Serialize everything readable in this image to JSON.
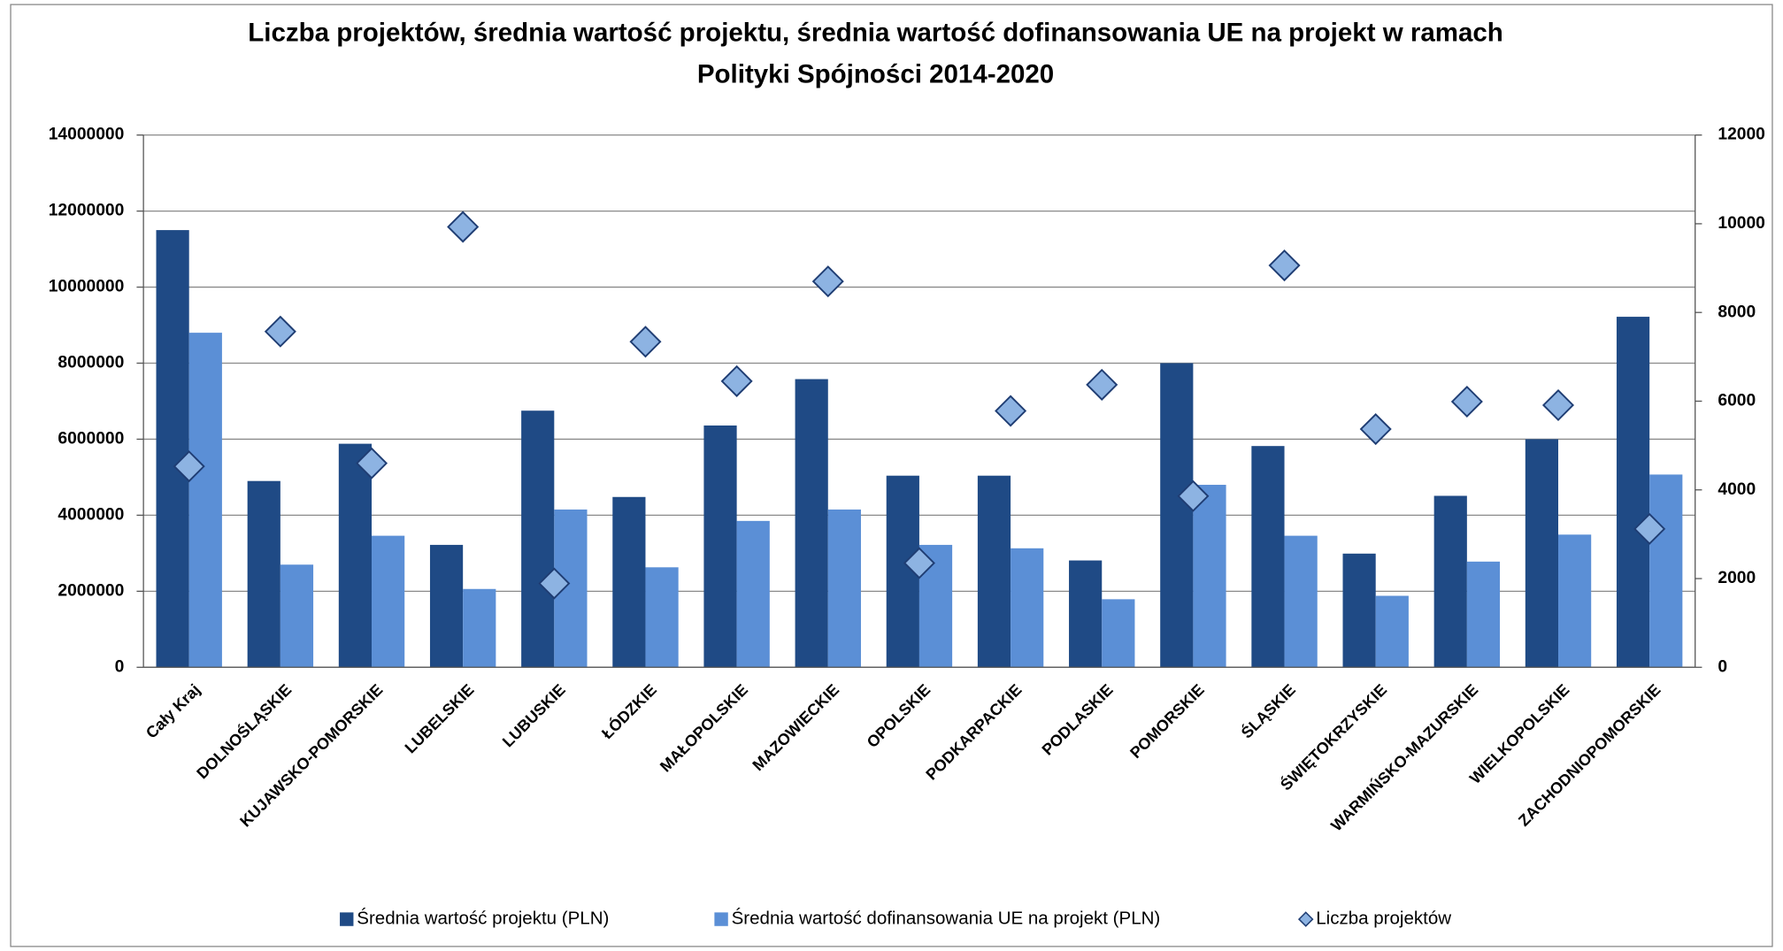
{
  "chart_data": {
    "type": "bar_diamond",
    "title": [
      "Liczba projektów, średnia wartość projektu, średnia wartość dofinansowania UE na projekt w ramach",
      "Polityki Spójności 2014-2020"
    ],
    "categories": [
      "Cały Kraj",
      "DOLNOŚLĄSKIE",
      "KUJAWSKO-POMORSKIE",
      "LUBELSKIE",
      "LUBUSKIE",
      "ŁÓDZKIE",
      "MAŁOPOLSKIE",
      "MAZOWIECKIE",
      "OPOLSKIE",
      "PODKARPACKIE",
      "PODLASKIE",
      "POMORSKIE",
      "ŚLĄSKIE",
      "ŚWIĘTOKRZYSKIE",
      "WARMIŃSKO-MAZURSKIE",
      "WIELKOPOLSKIE",
      "ZACHODNIOPOMORSKIE"
    ],
    "series": [
      {
        "name": "Średnia wartość projektu (PLN)",
        "color": "#1f4a85",
        "values": [
          11500000,
          4900000,
          5880000,
          3220000,
          6750000,
          4480000,
          6360000,
          7580000,
          5040000,
          5040000,
          2810000,
          8000000,
          5820000,
          2990000,
          4510000,
          6000000,
          9220000
        ]
      },
      {
        "name": "Średnia wartość dofinansowania UE na projekt (PLN)",
        "color": "#5b8fd6",
        "values": [
          8800000,
          2700000,
          3460000,
          2060000,
          4150000,
          2630000,
          3850000,
          4150000,
          3220000,
          3130000,
          1790000,
          4800000,
          3460000,
          1880000,
          2780000,
          3490000,
          5070000
        ]
      },
      {
        "name": "Liczba projektów",
        "color": "#8db3e2",
        "axis": "y2",
        "values": [
          4530,
          7570,
          4600,
          9930,
          1890,
          7340,
          6450,
          8700,
          2350,
          5780,
          6370,
          3860,
          9060,
          5370,
          5990,
          5910,
          3120
        ]
      }
    ],
    "ylim": [
      0,
      14000000
    ],
    "yticks": [
      0,
      2000000,
      4000000,
      6000000,
      8000000,
      10000000,
      12000000,
      14000000
    ],
    "y2lim": [
      0,
      12000
    ],
    "y2ticks": [
      0,
      2000,
      4000,
      6000,
      8000,
      10000,
      12000
    ],
    "grid": true,
    "legend": "bottom"
  }
}
